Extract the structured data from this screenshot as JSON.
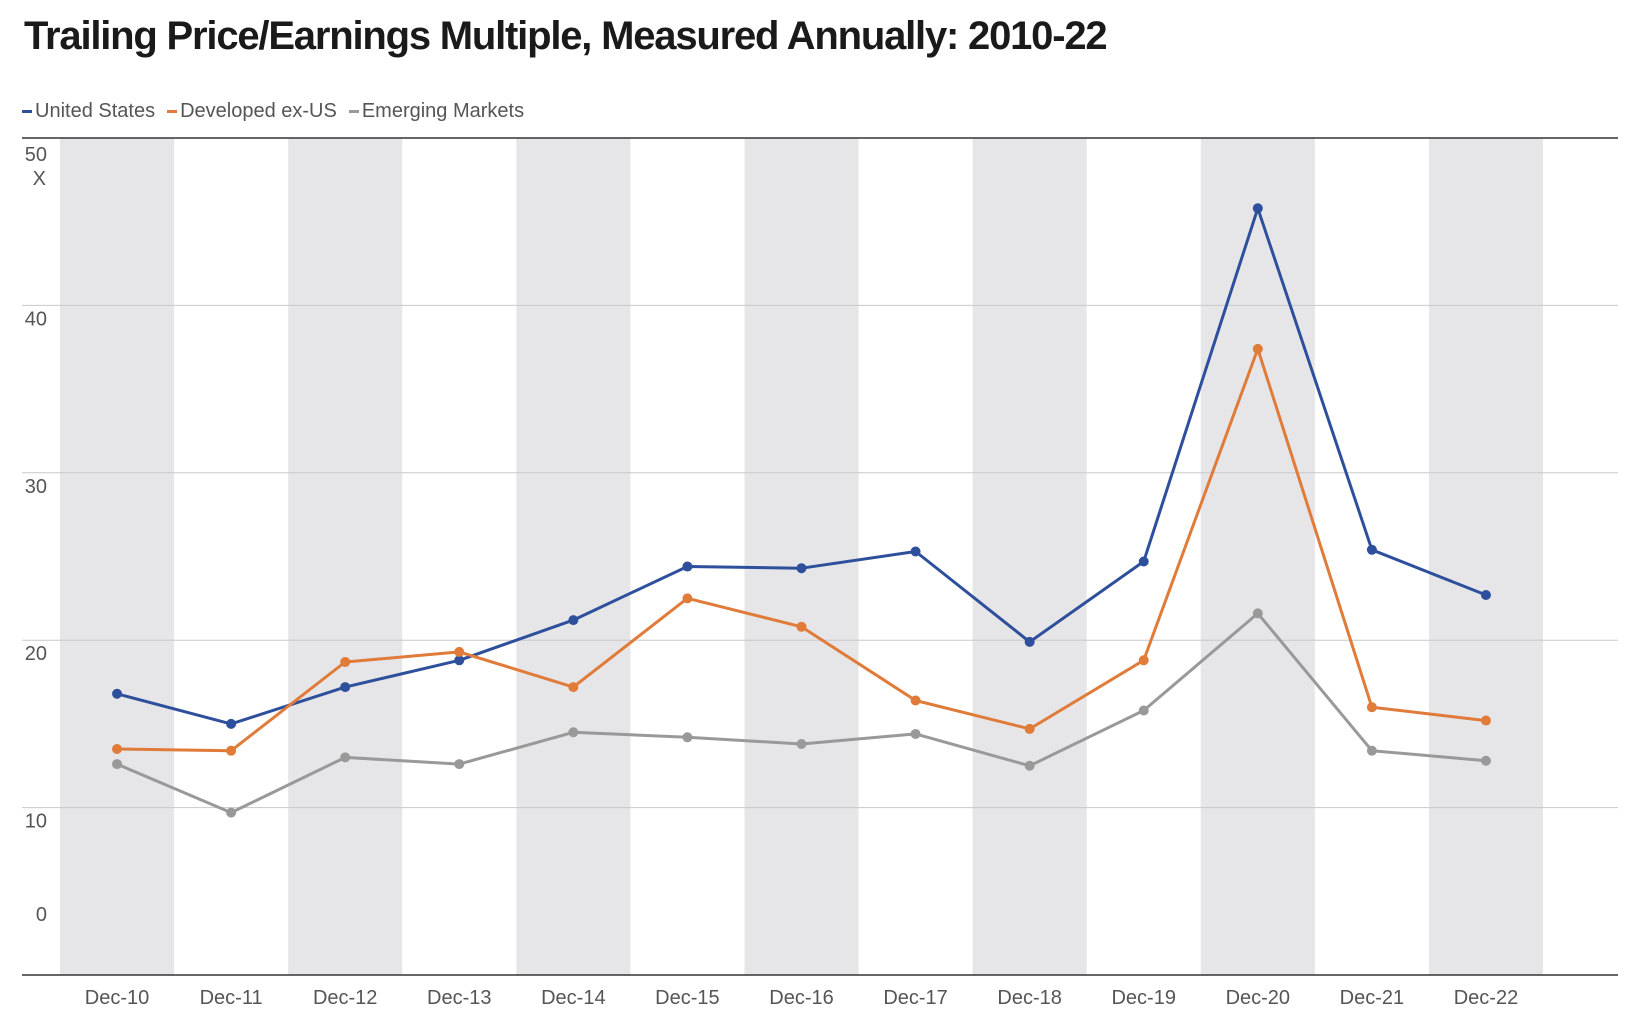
{
  "chart_data": {
    "type": "line",
    "title": "Trailing Price/Earnings Multiple, Measured Annually: 2010-22",
    "xlabel": "",
    "ylabel": "",
    "y_unit_label": "X",
    "categories": [
      "Dec-10",
      "Dec-11",
      "Dec-12",
      "Dec-13",
      "Dec-14",
      "Dec-15",
      "Dec-16",
      "Dec-17",
      "Dec-18",
      "Dec-19",
      "Dec-20",
      "Dec-21",
      "Dec-22"
    ],
    "series": [
      {
        "name": "United States",
        "color": "#2e4f9c",
        "values": [
          16.8,
          15.0,
          17.2,
          18.8,
          21.2,
          24.4,
          24.3,
          25.3,
          19.9,
          24.7,
          45.8,
          25.4,
          22.7
        ]
      },
      {
        "name": "Developed ex-US",
        "color": "#e07b39",
        "values": [
          13.5,
          13.4,
          18.7,
          19.3,
          17.2,
          22.5,
          20.8,
          16.4,
          14.7,
          18.8,
          37.4,
          16.0,
          15.2
        ]
      },
      {
        "name": "Emerging Markets",
        "color": "#999999",
        "values": [
          12.6,
          9.7,
          13.0,
          12.6,
          14.5,
          14.2,
          13.8,
          14.4,
          12.5,
          15.8,
          21.6,
          13.4,
          12.8
        ]
      }
    ],
    "yticks": [
      0,
      10,
      20,
      30,
      40,
      50
    ],
    "ylim": [
      0,
      50
    ],
    "grid": true,
    "alternating_column_shading": true,
    "legend_position": "top-left"
  }
}
